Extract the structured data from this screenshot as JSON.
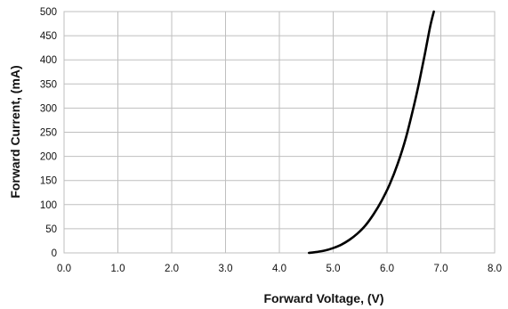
{
  "chart_data": {
    "type": "line",
    "xlabel": "Forward Voltage, (V)",
    "ylabel": "Forward Current, (mA)",
    "xlim": [
      0,
      8
    ],
    "ylim": [
      0,
      500
    ],
    "x_ticks": [
      "0.0",
      "1.0",
      "2.0",
      "3.0",
      "4.0",
      "5.0",
      "6.0",
      "7.0",
      "8.0"
    ],
    "y_ticks": [
      "0",
      "50",
      "100",
      "150",
      "200",
      "250",
      "300",
      "350",
      "400",
      "450",
      "500"
    ],
    "grid": true,
    "legend": "none",
    "series": [
      {
        "color": "#000000",
        "x": [
          4.55,
          4.7,
          4.85,
          5.0,
          5.15,
          5.3,
          5.45,
          5.6,
          5.75,
          5.9,
          6.05,
          6.2,
          6.35,
          6.5,
          6.6,
          6.7,
          6.8,
          6.87
        ],
        "y": [
          0,
          2,
          5,
          10,
          17,
          27,
          40,
          57,
          80,
          108,
          142,
          185,
          238,
          305,
          355,
          410,
          468,
          500
        ]
      }
    ]
  }
}
